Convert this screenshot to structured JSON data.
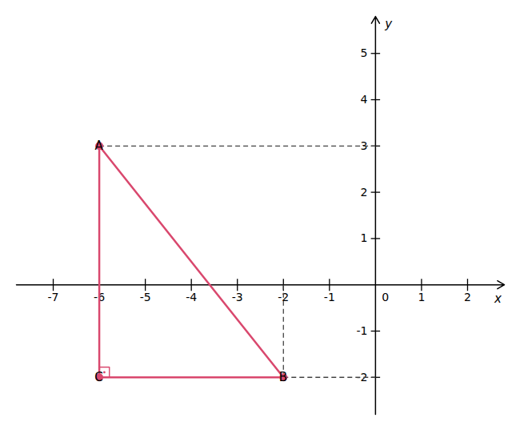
{
  "chart_data": {
    "type": "line",
    "x": [
      -6,
      -2,
      -6
    ],
    "values": [
      3,
      -2,
      -2
    ],
    "point_labels": [
      "A",
      "B",
      "C"
    ],
    "color": "#d9486e",
    "marker": "circle",
    "reference_lines": {
      "color": "#444444",
      "line_style": "dashed",
      "segments": [
        {
          "x1": -6,
          "y1": 3,
          "x2": 0,
          "y2": 3
        },
        {
          "x1": -2,
          "y1": -2,
          "x2": 0,
          "y2": -2
        },
        {
          "x1": -2,
          "y1": 0,
          "x2": -2,
          "y2": -2
        }
      ]
    },
    "annotations": [
      {
        "text": "0",
        "x": 0,
        "y": 0
      }
    ],
    "xlabel": "x",
    "ylabel": "y",
    "xlim": [
      -7.8,
      2.8
    ],
    "ylim": [
      -2.8,
      5.8
    ],
    "xticks": [
      -7,
      -6,
      -5,
      -4,
      -3,
      -2,
      -1,
      1,
      2
    ],
    "yticks": [
      -2,
      -1,
      1,
      2,
      3,
      4,
      5
    ],
    "grid": false
  }
}
